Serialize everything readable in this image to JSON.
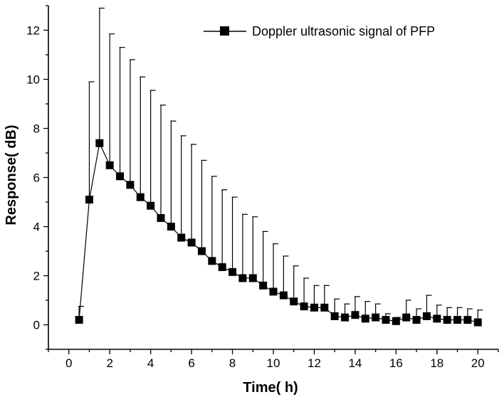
{
  "chart_data": {
    "type": "line",
    "title": "",
    "xlabel": "Time(  h)",
    "ylabel": "Response(  dB)",
    "xlim": [
      -1,
      21
    ],
    "ylim": [
      -1,
      13
    ],
    "xticks": [
      "0",
      "2",
      "4",
      "6",
      "8",
      "10",
      "12",
      "14",
      "16",
      "18",
      "20"
    ],
    "yticks": [
      "0",
      "2",
      "4",
      "6",
      "8",
      "10",
      "12"
    ],
    "legend_position": "top-right",
    "grid": false,
    "series": [
      {
        "name": "Doppler ultrasonic signal of PFP",
        "marker": "square",
        "color": "#000000",
        "x": [
          0.5,
          1,
          1.5,
          2,
          2.5,
          3,
          3.5,
          4,
          4.5,
          5,
          5.5,
          6,
          6.5,
          7,
          7.5,
          8,
          8.5,
          9,
          9.5,
          10,
          10.5,
          11,
          11.5,
          12,
          12.5,
          13,
          13.5,
          14,
          14.5,
          15,
          15.5,
          16,
          16.5,
          17,
          17.5,
          18,
          18.5,
          19,
          19.5,
          20
        ],
        "y": [
          0.2,
          5.1,
          7.4,
          6.5,
          6.05,
          5.7,
          5.2,
          4.85,
          4.35,
          4.0,
          3.55,
          3.35,
          3.0,
          2.6,
          2.35,
          2.15,
          1.9,
          1.9,
          1.6,
          1.35,
          1.2,
          0.95,
          0.75,
          0.7,
          0.7,
          0.35,
          0.3,
          0.4,
          0.25,
          0.3,
          0.2,
          0.15,
          0.3,
          0.2,
          0.35,
          0.25,
          0.2,
          0.2,
          0.2,
          0.1
        ],
        "error_upper": [
          0.75,
          9.9,
          12.9,
          11.85,
          11.3,
          10.8,
          10.1,
          9.55,
          8.95,
          8.3,
          7.7,
          7.35,
          6.7,
          6.05,
          5.5,
          5.2,
          4.5,
          4.4,
          3.8,
          3.3,
          2.8,
          2.4,
          1.9,
          1.6,
          1.6,
          1.05,
          0.85,
          1.15,
          0.95,
          0.85,
          0.45,
          0.3,
          1.0,
          0.65,
          1.2,
          0.8,
          0.7,
          0.7,
          0.65,
          0.6
        ]
      }
    ]
  }
}
